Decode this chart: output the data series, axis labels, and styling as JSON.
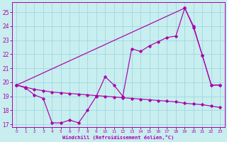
{
  "xlabel": "Windchill (Refroidissement éolien,°C)",
  "bg_color": "#c8eef0",
  "grid_color": "#a0d8dc",
  "line_color": "#aa00aa",
  "xlim_min": -0.5,
  "xlim_max": 23.5,
  "ylim_min": 16.8,
  "ylim_max": 25.7,
  "yticks": [
    17,
    18,
    19,
    20,
    21,
    22,
    23,
    24,
    25
  ],
  "xticks": [
    0,
    1,
    2,
    3,
    4,
    5,
    6,
    7,
    8,
    9,
    10,
    11,
    12,
    13,
    14,
    15,
    16,
    17,
    18,
    19,
    20,
    21,
    22,
    23
  ],
  "line_flat_x": [
    0,
    1,
    2,
    3,
    4,
    5,
    6,
    7,
    8,
    9,
    10,
    11,
    12,
    13,
    14,
    15,
    16,
    17,
    18,
    19,
    20,
    21,
    22,
    23
  ],
  "line_flat_y": [
    19.8,
    19.65,
    19.5,
    19.4,
    19.3,
    19.25,
    19.2,
    19.15,
    19.1,
    19.05,
    19.0,
    18.95,
    18.9,
    18.85,
    18.8,
    18.75,
    18.7,
    18.65,
    18.6,
    18.5,
    18.45,
    18.4,
    18.3,
    18.2
  ],
  "line_diag_x": [
    0,
    19,
    20,
    21,
    22,
    23
  ],
  "line_diag_y": [
    19.8,
    25.3,
    23.9,
    21.9,
    19.8,
    19.8
  ],
  "line_wave_x": [
    0,
    1,
    2,
    3,
    4,
    5,
    6,
    7,
    8,
    9,
    10,
    11,
    12,
    13,
    14,
    15,
    16,
    17,
    18,
    19,
    20,
    21,
    22,
    23
  ],
  "line_wave_y": [
    19.8,
    19.6,
    19.1,
    18.85,
    17.1,
    17.1,
    17.3,
    17.1,
    18.0,
    19.0,
    20.4,
    19.8,
    19.0,
    22.4,
    22.2,
    22.6,
    22.9,
    23.2,
    23.3,
    25.3,
    24.0,
    21.9,
    19.8,
    19.8
  ]
}
